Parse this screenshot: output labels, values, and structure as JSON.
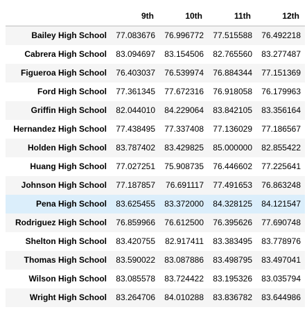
{
  "table": {
    "columns": [
      "9th",
      "10th",
      "11th",
      "12th"
    ],
    "rows": [
      {
        "school": "Bailey High School",
        "values": [
          "77.083676",
          "76.996772",
          "77.515588",
          "76.492218"
        ]
      },
      {
        "school": "Cabrera High School",
        "values": [
          "83.094697",
          "83.154506",
          "82.765560",
          "83.277487"
        ]
      },
      {
        "school": "Figueroa High School",
        "values": [
          "76.403037",
          "76.539974",
          "76.884344",
          "77.151369"
        ]
      },
      {
        "school": "Ford High School",
        "values": [
          "77.361345",
          "77.672316",
          "76.918058",
          "76.179963"
        ]
      },
      {
        "school": "Griffin High School",
        "values": [
          "82.044010",
          "84.229064",
          "83.842105",
          "83.356164"
        ]
      },
      {
        "school": "Hernandez High School",
        "values": [
          "77.438495",
          "77.337408",
          "77.136029",
          "77.186567"
        ]
      },
      {
        "school": "Holden High School",
        "values": [
          "83.787402",
          "83.429825",
          "85.000000",
          "82.855422"
        ]
      },
      {
        "school": "Huang High School",
        "values": [
          "77.027251",
          "75.908735",
          "76.446602",
          "77.225641"
        ]
      },
      {
        "school": "Johnson High School",
        "values": [
          "77.187857",
          "76.691117",
          "77.491653",
          "76.863248"
        ]
      },
      {
        "school": "Pena High School",
        "values": [
          "83.625455",
          "83.372000",
          "84.328125",
          "84.121547"
        ]
      },
      {
        "school": "Rodriguez High School",
        "values": [
          "76.859966",
          "76.612500",
          "76.395626",
          "77.690748"
        ]
      },
      {
        "school": "Shelton High School",
        "values": [
          "83.420755",
          "82.917411",
          "83.383495",
          "83.778976"
        ]
      },
      {
        "school": "Thomas High School",
        "values": [
          "83.590022",
          "83.087886",
          "83.498795",
          "83.497041"
        ]
      },
      {
        "school": "Wilson High School",
        "values": [
          "83.085578",
          "83.724422",
          "83.195326",
          "83.035794"
        ]
      },
      {
        "school": "Wright High School",
        "values": [
          "83.264706",
          "84.010288",
          "83.836782",
          "83.644986"
        ]
      }
    ]
  },
  "colors": {
    "row_stripe": "#f5f5f5",
    "row_hover": "#dbeefb",
    "header_border": "#bdbdbd"
  }
}
